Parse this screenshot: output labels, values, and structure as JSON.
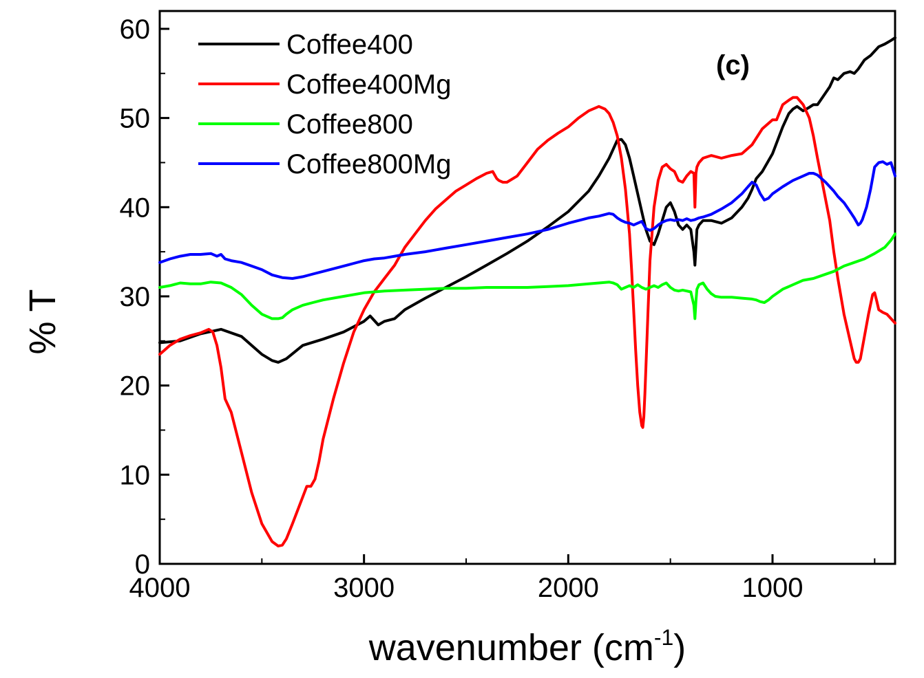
{
  "chart_data": {
    "type": "line",
    "title": "",
    "panel_label": "(c)",
    "xlabel": "wavenumber (cm",
    "xlabel_sup": "-1",
    "xlabel_close": ")",
    "ylabel": "% T",
    "xlim": [
      4000,
      400
    ],
    "ylim": [
      0,
      62
    ],
    "xticks": [
      4000,
      3000,
      2000,
      1000
    ],
    "xtick_labels": [
      "4000",
      "3000",
      "2000",
      "1000"
    ],
    "yticks": [
      0,
      10,
      20,
      30,
      40,
      50,
      60
    ],
    "ytick_labels": [
      "0",
      "10",
      "20",
      "30",
      "40",
      "50",
      "60"
    ],
    "grid": false,
    "legend_position": "top-left",
    "series": [
      {
        "name": "Coffee400",
        "color": "#000000",
        "x": [
          4000,
          3900,
          3800,
          3700,
          3600,
          3500,
          3450,
          3420,
          3380,
          3300,
          3200,
          3100,
          3000,
          2970,
          2930,
          2900,
          2850,
          2800,
          2700,
          2600,
          2500,
          2400,
          2300,
          2200,
          2100,
          2000,
          1900,
          1850,
          1800,
          1760,
          1740,
          1720,
          1700,
          1680,
          1660,
          1640,
          1620,
          1600,
          1580,
          1560,
          1540,
          1520,
          1500,
          1480,
          1460,
          1440,
          1420,
          1400,
          1385,
          1380,
          1375,
          1370,
          1360,
          1340,
          1300,
          1250,
          1200,
          1150,
          1120,
          1100,
          1080,
          1050,
          1000,
          950,
          920,
          900,
          880,
          850,
          820,
          800,
          780,
          750,
          720,
          700,
          680,
          650,
          620,
          600,
          580,
          550,
          520,
          500,
          480,
          450,
          420,
          400
        ],
        "y": [
          24.8,
          25.0,
          25.8,
          26.3,
          25.5,
          23.5,
          22.8,
          22.6,
          23.0,
          24.5,
          25.2,
          26.0,
          27.2,
          27.8,
          26.8,
          27.2,
          27.5,
          28.5,
          29.8,
          31.0,
          32.2,
          33.5,
          34.8,
          36.2,
          37.8,
          39.5,
          41.8,
          43.5,
          45.5,
          47.5,
          47.6,
          47.0,
          45.5,
          43.5,
          41.5,
          39.5,
          37.5,
          36.2,
          35.8,
          37.0,
          38.5,
          40.0,
          40.5,
          39.5,
          38.0,
          37.5,
          38.0,
          37.5,
          35.0,
          33.5,
          35.5,
          37.5,
          38.0,
          38.5,
          38.5,
          38.2,
          38.8,
          40.0,
          41.0,
          42.0,
          43.2,
          44.0,
          46.0,
          49.0,
          50.5,
          51.0,
          51.3,
          50.8,
          51.2,
          51.5,
          51.5,
          52.5,
          53.5,
          54.5,
          54.3,
          55.0,
          55.2,
          55.0,
          55.5,
          56.5,
          57.0,
          57.5,
          58.0,
          58.3,
          58.7,
          59.0
        ]
      },
      {
        "name": "Coffee400Mg",
        "color": "#ff0000",
        "x": [
          4000,
          3950,
          3900,
          3850,
          3800,
          3760,
          3740,
          3720,
          3700,
          3680,
          3650,
          3600,
          3550,
          3500,
          3450,
          3420,
          3400,
          3380,
          3350,
          3300,
          3280,
          3260,
          3240,
          3220,
          3200,
          3150,
          3100,
          3050,
          3000,
          2950,
          2900,
          2850,
          2800,
          2750,
          2700,
          2650,
          2600,
          2550,
          2500,
          2450,
          2400,
          2370,
          2350,
          2340,
          2320,
          2300,
          2250,
          2200,
          2150,
          2100,
          2050,
          2000,
          1950,
          1900,
          1850,
          1820,
          1800,
          1780,
          1760,
          1740,
          1720,
          1700,
          1690,
          1680,
          1670,
          1660,
          1650,
          1640,
          1635,
          1630,
          1625,
          1620,
          1610,
          1600,
          1580,
          1560,
          1540,
          1520,
          1500,
          1480,
          1460,
          1440,
          1420,
          1400,
          1385,
          1380,
          1375,
          1370,
          1360,
          1340,
          1300,
          1250,
          1200,
          1150,
          1100,
          1050,
          1000,
          980,
          950,
          920,
          900,
          880,
          850,
          820,
          800,
          780,
          750,
          720,
          700,
          680,
          650,
          620,
          600,
          590,
          580,
          570,
          550,
          530,
          510,
          500,
          490,
          480,
          460,
          440,
          420,
          400
        ],
        "y": [
          23.5,
          24.5,
          25.2,
          25.6,
          25.9,
          26.3,
          26.0,
          24.5,
          22.0,
          18.5,
          17.0,
          12.5,
          8.0,
          4.5,
          2.5,
          2.0,
          2.1,
          2.8,
          4.5,
          7.5,
          8.7,
          8.7,
          9.5,
          11.5,
          14.0,
          18.5,
          22.5,
          26.0,
          28.5,
          30.5,
          32.0,
          33.5,
          35.5,
          37.0,
          38.5,
          39.8,
          40.8,
          41.8,
          42.5,
          43.2,
          43.8,
          44.0,
          43.2,
          43.0,
          42.8,
          42.8,
          43.5,
          45.0,
          46.5,
          47.5,
          48.3,
          49.0,
          50.0,
          50.8,
          51.3,
          51.0,
          50.5,
          49.5,
          48.0,
          45.5,
          42.0,
          37.0,
          33.0,
          28.5,
          24.0,
          20.0,
          17.0,
          15.5,
          15.3,
          16.5,
          19.0,
          22.0,
          28.0,
          34.0,
          40.0,
          43.0,
          44.5,
          44.8,
          44.3,
          44.0,
          43.0,
          42.8,
          43.5,
          44.0,
          43.8,
          40.0,
          43.8,
          44.5,
          45.0,
          45.5,
          45.8,
          45.5,
          45.8,
          46.0,
          47.0,
          48.8,
          49.8,
          49.8,
          51.5,
          52.0,
          52.3,
          52.3,
          51.5,
          50.0,
          48.0,
          45.5,
          42.0,
          38.5,
          35.0,
          32.0,
          28.0,
          25.0,
          23.0,
          22.6,
          22.6,
          23.0,
          25.5,
          28.0,
          30.2,
          30.4,
          29.5,
          28.5,
          28.2,
          28.0,
          27.5,
          27.0
        ]
      },
      {
        "name": "Coffee800",
        "color": "#00ff00",
        "x": [
          4000,
          3950,
          3900,
          3850,
          3800,
          3750,
          3700,
          3650,
          3600,
          3550,
          3500,
          3450,
          3420,
          3400,
          3380,
          3350,
          3300,
          3250,
          3200,
          3100,
          3000,
          2900,
          2800,
          2700,
          2600,
          2500,
          2400,
          2300,
          2200,
          2100,
          2000,
          1900,
          1800,
          1780,
          1760,
          1740,
          1720,
          1700,
          1680,
          1660,
          1640,
          1620,
          1600,
          1580,
          1560,
          1540,
          1520,
          1500,
          1480,
          1460,
          1440,
          1420,
          1400,
          1385,
          1380,
          1375,
          1370,
          1360,
          1340,
          1320,
          1300,
          1280,
          1250,
          1200,
          1150,
          1100,
          1080,
          1060,
          1040,
          1020,
          1000,
          950,
          900,
          850,
          800,
          750,
          700,
          650,
          600,
          550,
          500,
          450,
          420,
          400
        ],
        "y": [
          31.0,
          31.2,
          31.5,
          31.4,
          31.4,
          31.6,
          31.5,
          31.0,
          30.2,
          29.0,
          28.0,
          27.5,
          27.5,
          27.6,
          28.0,
          28.5,
          29.0,
          29.3,
          29.6,
          30.0,
          30.4,
          30.6,
          30.7,
          30.8,
          30.9,
          30.9,
          31.0,
          31.0,
          31.0,
          31.1,
          31.2,
          31.4,
          31.6,
          31.5,
          31.3,
          30.8,
          31.0,
          31.2,
          31.0,
          31.3,
          31.0,
          30.8,
          31.0,
          31.2,
          31.0,
          31.3,
          31.5,
          31.0,
          30.7,
          30.6,
          30.7,
          30.6,
          30.5,
          29.0,
          27.5,
          29.5,
          30.8,
          31.3,
          31.5,
          30.8,
          30.3,
          30.0,
          29.9,
          29.9,
          29.8,
          29.7,
          29.6,
          29.4,
          29.3,
          29.6,
          30.0,
          30.8,
          31.3,
          31.8,
          32.0,
          32.4,
          32.8,
          33.4,
          33.8,
          34.2,
          34.8,
          35.5,
          36.3,
          37.0
        ]
      },
      {
        "name": "Coffee800Mg",
        "color": "#0000ff",
        "x": [
          4000,
          3950,
          3900,
          3850,
          3800,
          3750,
          3720,
          3700,
          3680,
          3650,
          3600,
          3550,
          3500,
          3450,
          3400,
          3350,
          3300,
          3250,
          3200,
          3150,
          3100,
          3050,
          3000,
          2950,
          2900,
          2850,
          2800,
          2700,
          2600,
          2500,
          2400,
          2300,
          2200,
          2100,
          2000,
          1900,
          1850,
          1800,
          1780,
          1760,
          1740,
          1720,
          1700,
          1680,
          1660,
          1640,
          1620,
          1600,
          1580,
          1560,
          1540,
          1520,
          1500,
          1480,
          1460,
          1440,
          1420,
          1400,
          1380,
          1360,
          1340,
          1300,
          1250,
          1200,
          1150,
          1120,
          1100,
          1080,
          1060,
          1040,
          1020,
          1000,
          950,
          900,
          850,
          820,
          800,
          780,
          760,
          740,
          720,
          700,
          680,
          650,
          620,
          600,
          580,
          570,
          560,
          540,
          520,
          500,
          480,
          460,
          440,
          420,
          400
        ],
        "y": [
          33.8,
          34.2,
          34.5,
          34.7,
          34.7,
          34.8,
          34.5,
          34.7,
          34.2,
          34.0,
          33.8,
          33.4,
          33.0,
          32.4,
          32.1,
          32.0,
          32.2,
          32.5,
          32.8,
          33.1,
          33.4,
          33.7,
          34.0,
          34.2,
          34.3,
          34.5,
          34.7,
          35.0,
          35.4,
          35.8,
          36.2,
          36.6,
          37.0,
          37.5,
          38.2,
          38.8,
          39.0,
          39.3,
          39.2,
          38.8,
          38.5,
          38.3,
          38.2,
          38.0,
          38.2,
          38.4,
          37.6,
          37.4,
          37.6,
          38.0,
          38.3,
          38.5,
          38.6,
          38.5,
          38.6,
          38.5,
          38.7,
          38.5,
          38.6,
          38.8,
          38.9,
          39.2,
          39.8,
          40.5,
          41.5,
          42.3,
          42.8,
          42.5,
          41.5,
          40.8,
          41.0,
          41.5,
          42.3,
          43.0,
          43.5,
          43.8,
          43.8,
          43.6,
          43.2,
          42.8,
          42.3,
          41.8,
          41.2,
          40.5,
          39.5,
          38.8,
          38.0,
          38.2,
          38.6,
          40.0,
          42.0,
          44.5,
          45.0,
          45.1,
          44.8,
          45.0,
          43.5
        ]
      }
    ]
  }
}
